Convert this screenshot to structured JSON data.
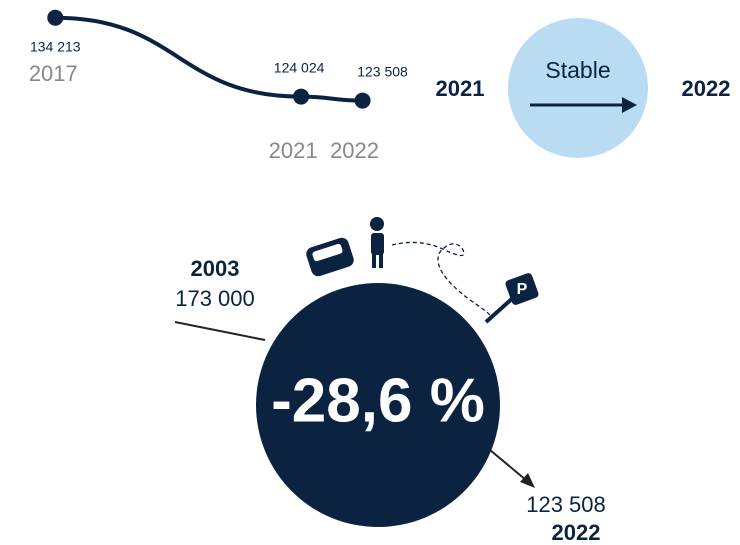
{
  "chart_data": {
    "type": "line",
    "x": [
      2017,
      2021,
      2022
    ],
    "values": [
      134213,
      124024,
      123508
    ],
    "value_labels": [
      "134 213",
      "124 024",
      "123 508"
    ],
    "color": "#0b2341",
    "xlim": [
      2016.1,
      2023
    ],
    "xticks": [
      2017,
      2021,
      2022
    ],
    "ylim": [
      121000,
      136500
    ]
  },
  "comparison": {
    "from": "2021",
    "status": "Stable",
    "to": "2022"
  },
  "summary": {
    "change": "-28,6 %",
    "start_year": "2003",
    "start_value": "173 000",
    "end_value": "123 508",
    "end_year": "2022"
  }
}
